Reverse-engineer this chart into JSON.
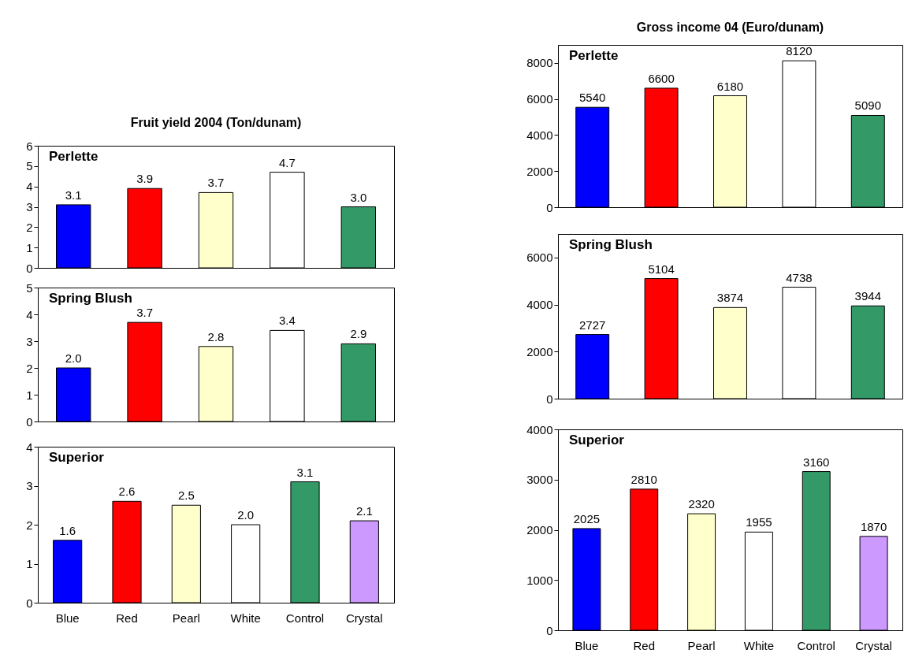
{
  "chart_data": [
    {
      "type": "bar",
      "title": "Fruit yield 2004 (Ton/dunam)",
      "annotations": [
        "Perlette"
      ],
      "categories": [
        null,
        null,
        null,
        null,
        null
      ],
      "values": [
        3.1,
        3.9,
        3.7,
        4.7,
        3.0
      ],
      "value_labels": [
        "3.1",
        "3.9",
        "3.7",
        "4.7",
        "3.0"
      ],
      "colors": [
        "#0000ff",
        "#ff0000",
        "#ffffcc",
        "#ffffff",
        "#339966"
      ],
      "ylim": [
        0,
        6
      ],
      "yticks": [
        0,
        1,
        2,
        3,
        4,
        5,
        6
      ]
    },
    {
      "type": "bar",
      "annotations": [
        "Spring Blush"
      ],
      "categories": [
        null,
        null,
        null,
        null,
        null
      ],
      "values": [
        2.0,
        3.7,
        2.8,
        3.4,
        2.9
      ],
      "value_labels": [
        "2.0",
        "3.7",
        "2.8",
        "3.4",
        "2.9"
      ],
      "colors": [
        "#0000ff",
        "#ff0000",
        "#ffffcc",
        "#ffffff",
        "#339966"
      ],
      "ylim": [
        0,
        5
      ],
      "yticks": [
        0,
        1,
        2,
        3,
        4,
        5
      ]
    },
    {
      "type": "bar",
      "annotations": [
        "Superior"
      ],
      "categories": [
        "Blue",
        "Red",
        "Pearl",
        "White",
        "Control",
        "Crystal"
      ],
      "values": [
        1.6,
        2.6,
        2.5,
        2.0,
        3.1,
        2.1
      ],
      "value_labels": [
        "1.6",
        "2.6",
        "2.5",
        "2.0",
        "3.1",
        "2.1"
      ],
      "colors": [
        "#0000ff",
        "#ff0000",
        "#ffffcc",
        "#ffffff",
        "#339966",
        "#cc99ff"
      ],
      "ylim": [
        0,
        4
      ],
      "yticks": [
        0,
        1,
        2,
        3,
        4
      ]
    },
    {
      "type": "bar",
      "title": "Gross income 04 (Euro/dunam)",
      "annotations": [
        "Perlette"
      ],
      "categories": [
        null,
        null,
        null,
        null,
        null
      ],
      "values": [
        5540,
        6600,
        6180,
        8120,
        5090
      ],
      "value_labels": [
        "5540",
        "6600",
        "6180",
        "8120",
        "5090"
      ],
      "colors": [
        "#0000ff",
        "#ff0000",
        "#ffffcc",
        "#ffffff",
        "#339966"
      ],
      "ylim": [
        0,
        9000
      ],
      "yticks": [
        0,
        2000,
        4000,
        6000,
        8000
      ]
    },
    {
      "type": "bar",
      "annotations": [
        "Spring Blush"
      ],
      "categories": [
        null,
        null,
        null,
        null,
        null
      ],
      "values": [
        2727,
        5104,
        3874,
        4738,
        3944
      ],
      "value_labels": [
        "2727",
        "5104",
        "3874",
        "4738",
        "3944"
      ],
      "colors": [
        "#0000ff",
        "#ff0000",
        "#ffffcc",
        "#ffffff",
        "#339966"
      ],
      "ylim": [
        0,
        7000
      ],
      "yticks": [
        0,
        2000,
        4000,
        6000
      ]
    },
    {
      "type": "bar",
      "annotations": [
        "Superior"
      ],
      "categories": [
        "Blue",
        "Red",
        "Pearl",
        "White",
        "Control",
        "Crystal"
      ],
      "values": [
        2025,
        2810,
        2320,
        1955,
        3160,
        1870
      ],
      "value_labels": [
        "2025",
        "2810",
        "2320",
        "1955",
        "3160",
        "1870"
      ],
      "colors": [
        "#0000ff",
        "#ff0000",
        "#ffffcc",
        "#ffffff",
        "#339966",
        "#cc99ff"
      ],
      "ylim": [
        0,
        4000
      ],
      "yticks": [
        0,
        1000,
        2000,
        3000,
        4000
      ]
    }
  ]
}
